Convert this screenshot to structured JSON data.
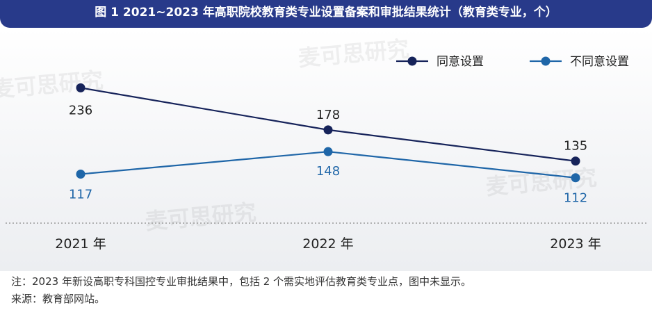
{
  "header": {
    "title": "图 1  2021~2023 年高职院校教育类专业设置备案和审批结果统计（教育类专业，个）"
  },
  "chart_data": {
    "type": "line",
    "categories": [
      "2021 年",
      "2022 年",
      "2023 年"
    ],
    "series": [
      {
        "name": "同意设置",
        "values": [
          236,
          178,
          135
        ],
        "color": "#16235a"
      },
      {
        "name": "不同意设置",
        "values": [
          117,
          148,
          112
        ],
        "color": "#1f66a8"
      }
    ],
    "title": "",
    "xlabel": "",
    "ylabel": "",
    "ylim": [
      60,
      290
    ],
    "grid": false,
    "legend": "top-right"
  },
  "watermark": {
    "text": "麦可思研究"
  },
  "footnotes": {
    "note": "注：2023 年新设高职专科国控专业审批结果中，包括 2 个需实地评估教育类专业点，图中未显示。",
    "source": "来源：教育部网站。"
  }
}
